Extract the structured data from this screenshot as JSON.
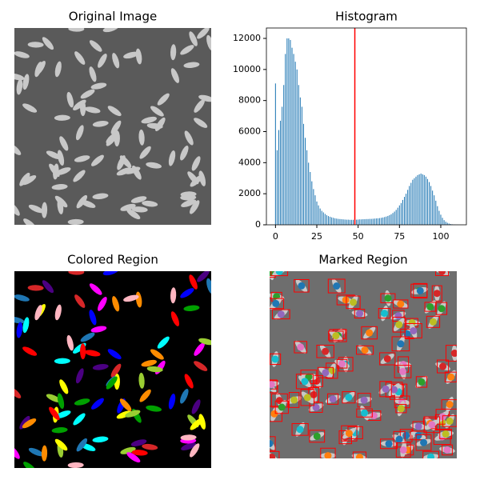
{
  "chart_data": [
    {
      "type": "image",
      "title": "Original Image"
    },
    {
      "type": "bar",
      "title": "Histogram",
      "color": "#1f77b4",
      "x": [
        0,
        1,
        2,
        3,
        4,
        5,
        6,
        7,
        8,
        9,
        10,
        11,
        12,
        13,
        14,
        15,
        16,
        17,
        18,
        19,
        20,
        21,
        22,
        23,
        24,
        25,
        26,
        27,
        28,
        29,
        30,
        31,
        32,
        33,
        34,
        35,
        36,
        37,
        38,
        39,
        40,
        41,
        42,
        43,
        44,
        45,
        46,
        47,
        48,
        49,
        50,
        51,
        52,
        53,
        54,
        55,
        56,
        57,
        58,
        59,
        60,
        61,
        62,
        63,
        64,
        65,
        66,
        67,
        68,
        69,
        70,
        71,
        72,
        73,
        74,
        75,
        76,
        77,
        78,
        79,
        80,
        81,
        82,
        83,
        84,
        85,
        86,
        87,
        88,
        89,
        90,
        91,
        92,
        93,
        94,
        95,
        96,
        97,
        98,
        99,
        100,
        101,
        102,
        103,
        104,
        105,
        106,
        107,
        108,
        109,
        110
      ],
      "values": [
        9100,
        4800,
        6100,
        6700,
        7600,
        9000,
        11000,
        12000,
        12000,
        11900,
        11400,
        11000,
        10500,
        10000,
        9000,
        8200,
        7600,
        6500,
        5600,
        4800,
        4000,
        3400,
        2800,
        2300,
        1900,
        1500,
        1250,
        1050,
        900,
        800,
        700,
        620,
        560,
        520,
        480,
        450,
        420,
        400,
        380,
        370,
        360,
        350,
        340,
        330,
        330,
        320,
        320,
        320,
        320,
        330,
        340,
        350,
        350,
        360,
        360,
        370,
        370,
        380,
        380,
        390,
        400,
        410,
        420,
        430,
        450,
        470,
        500,
        530,
        570,
        620,
        680,
        760,
        850,
        960,
        1100,
        1250,
        1400,
        1600,
        1800,
        2000,
        2250,
        2500,
        2700,
        2900,
        3000,
        3100,
        3200,
        3250,
        3300,
        3250,
        3200,
        3100,
        2950,
        2750,
        2500,
        2200,
        1900,
        1550,
        1200,
        900,
        650,
        450,
        300,
        200,
        130,
        80,
        50,
        30,
        20,
        10,
        5
      ],
      "xlim": [
        -5.5,
        115.5
      ],
      "xticks": [
        0,
        25,
        50,
        75,
        100
      ],
      "ylim": [
        0,
        12670
      ],
      "yticks": [
        0,
        2000,
        4000,
        6000,
        8000,
        10000,
        12000
      ],
      "vline": 48,
      "vline_color": "#ff0000"
    },
    {
      "type": "image",
      "title": "Colored Region"
    },
    {
      "type": "image",
      "title": "Marked Region"
    }
  ]
}
